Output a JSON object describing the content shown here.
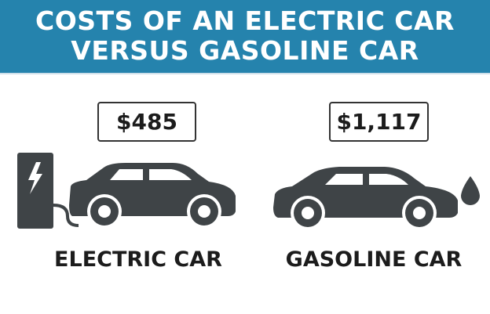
{
  "title": {
    "line1": "COSTS OF AN ELECTRIC CAR",
    "line2": "VERSUS GASOLINE CAR"
  },
  "electric": {
    "cost": "$485",
    "label": "ELECTRIC CAR",
    "icons": [
      "charging-station-icon",
      "lightning-bolt-icon",
      "car-icon"
    ]
  },
  "gasoline": {
    "cost": "$1,117",
    "label": "GASOLINE CAR",
    "icons": [
      "car-icon",
      "fuel-droplet-icon"
    ]
  },
  "colors": {
    "header": "#2583ad",
    "icon": "#3f4447",
    "text": "#1c1c1c"
  }
}
